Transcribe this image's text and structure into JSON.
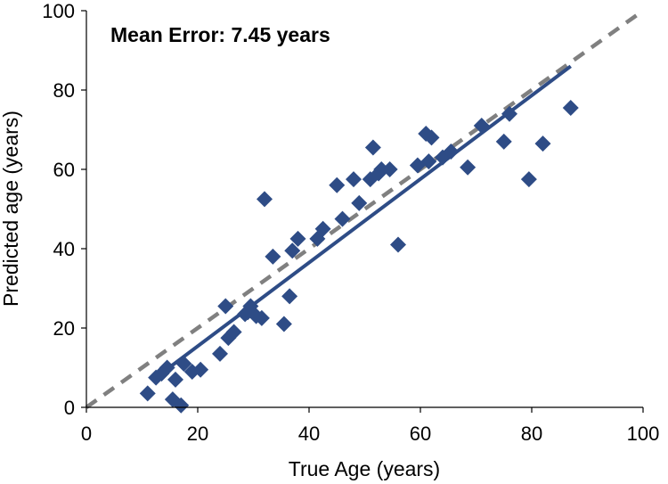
{
  "chart_data": {
    "type": "scatter",
    "title": "",
    "annotation": "Mean Error: 7.45 years",
    "xlabel": "True Age (years)",
    "ylabel": "Predicted age (years)",
    "xlim": [
      0,
      100
    ],
    "ylim": [
      0,
      100
    ],
    "x_ticks": [
      "0",
      "20",
      "40",
      "60",
      "80",
      "100"
    ],
    "y_ticks": [
      "0",
      "20",
      "40",
      "60",
      "80",
      "100"
    ],
    "grid": false,
    "legend": "none",
    "colors": {
      "points": "#2E4C86",
      "fit_line": "#2E4C86",
      "identity_line": "#808080"
    },
    "series": [
      {
        "values": [
          [
            11,
            3.5
          ],
          [
            12.5,
            7.5
          ],
          [
            13.5,
            8.5
          ],
          [
            14.5,
            10
          ],
          [
            16,
            7
          ],
          [
            15.5,
            2
          ],
          [
            17,
            0.5
          ],
          [
            17.5,
            11
          ],
          [
            19,
            9
          ],
          [
            20.5,
            9.5
          ],
          [
            24,
            13.5
          ],
          [
            25,
            25.5
          ],
          [
            25.5,
            17.5
          ],
          [
            26.5,
            19
          ],
          [
            28.5,
            23.5
          ],
          [
            29,
            24
          ],
          [
            29.5,
            25.5
          ],
          [
            30.5,
            23
          ],
          [
            31.5,
            22.5
          ],
          [
            32,
            52.5
          ],
          [
            33.5,
            38
          ],
          [
            35.5,
            21
          ],
          [
            36.5,
            28
          ],
          [
            37,
            39.5
          ],
          [
            38,
            42.5
          ],
          [
            41.5,
            42.5
          ],
          [
            42.5,
            45
          ],
          [
            45,
            56
          ],
          [
            46,
            47.5
          ],
          [
            48,
            57.5
          ],
          [
            49,
            51.5
          ],
          [
            51,
            57.5
          ],
          [
            51.5,
            65.5
          ],
          [
            52.5,
            59
          ],
          [
            53,
            60
          ],
          [
            54.5,
            60
          ],
          [
            56,
            41
          ],
          [
            59.5,
            61
          ],
          [
            61,
            69
          ],
          [
            61.5,
            62
          ],
          [
            62,
            68
          ],
          [
            64,
            63
          ],
          [
            65.5,
            64.5
          ],
          [
            68.5,
            60.5
          ],
          [
            71,
            71
          ],
          [
            75,
            67
          ],
          [
            76,
            74
          ],
          [
            79.5,
            57.5
          ],
          [
            82,
            66.5
          ],
          [
            87,
            75.5
          ]
        ]
      }
    ],
    "fit_line": {
      "x": [
        12,
        87
      ],
      "y": [
        7,
        86
      ]
    },
    "identity_line": {
      "x": [
        0,
        100
      ],
      "y": [
        0,
        100
      ]
    }
  }
}
